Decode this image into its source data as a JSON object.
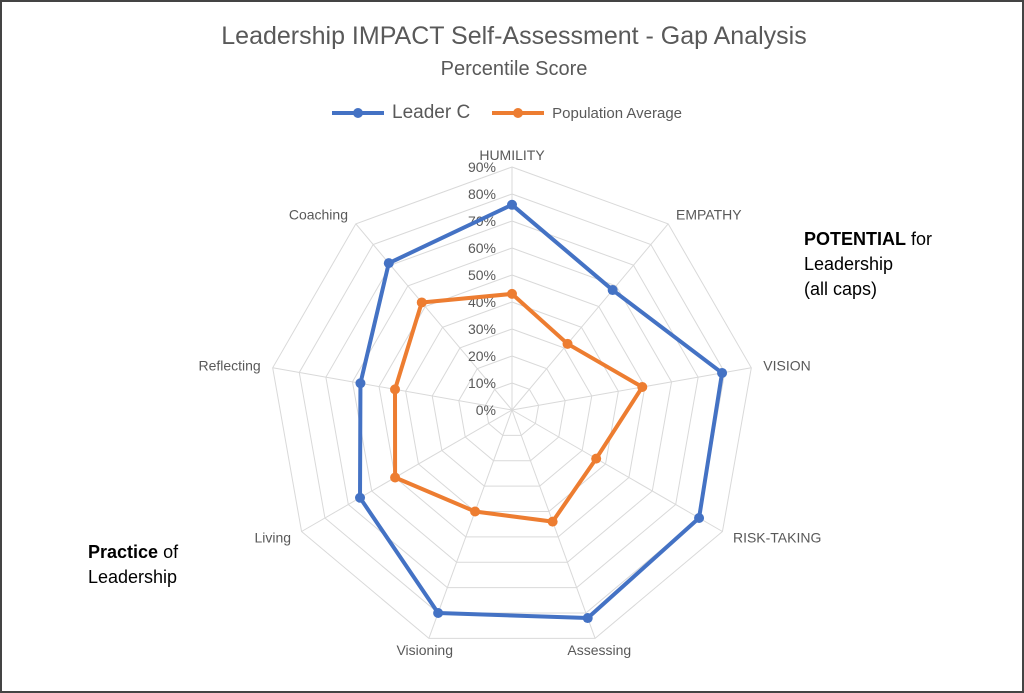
{
  "chart_data": {
    "type": "radar",
    "title": "Leadership IMPACT Self-Assessment - Gap Analysis",
    "subtitle": "Percentile Score",
    "categories": [
      "HUMILITY",
      "EMPATHY",
      "VISION",
      "RISK-TAKING",
      "Assessing",
      "Visioning",
      "Living",
      "Reflecting",
      "Coaching"
    ],
    "series": [
      {
        "name": "Leader C",
        "color": "#4472C4",
        "values": [
          76,
          58,
          79,
          80,
          82,
          80,
          65,
          57,
          71
        ]
      },
      {
        "name": "Population Average",
        "color": "#ED7D31",
        "values": [
          43,
          32,
          49,
          36,
          44,
          40,
          50,
          44,
          52
        ]
      }
    ],
    "rlim": [
      0,
      90
    ],
    "tick_labels": [
      "0%",
      "10%",
      "20%",
      "30%",
      "40%",
      "50%",
      "60%",
      "70%",
      "80%",
      "90%"
    ],
    "legend_position": "top",
    "grid": true
  },
  "annotations": {
    "potential_bold": "POTENTIAL",
    "potential_rest": " for",
    "potential_line2": "Leadership",
    "potential_line3": "(all caps)",
    "practice_bold": "Practice",
    "practice_rest": " of",
    "practice_line2": "Leadership"
  }
}
